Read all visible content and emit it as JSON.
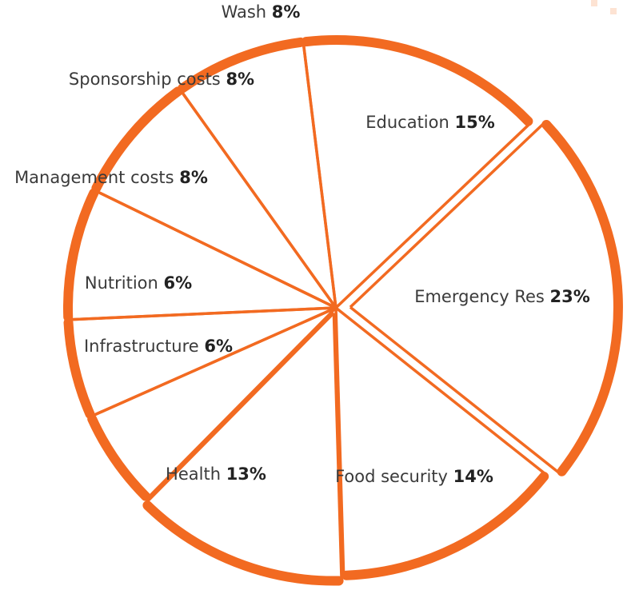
{
  "colors": {
    "accent": "#f26a21",
    "text": "#3a3a3a",
    "background": "#ffffff"
  },
  "chart_data": {
    "type": "pie",
    "title": "",
    "categories": [
      "Education",
      "Emergency Res",
      "Food security",
      "Health",
      "Infrastructure",
      "Nutrition",
      "Management costs",
      "Sponsorship costs",
      "Wash"
    ],
    "values": [
      15,
      23,
      14,
      13,
      6,
      6,
      8,
      8,
      8
    ],
    "value_labels": [
      "15%",
      "23%",
      "14%",
      "13%",
      "6%",
      "6%",
      "8%",
      "8%",
      "8%"
    ],
    "grid": false,
    "legend": "none"
  }
}
